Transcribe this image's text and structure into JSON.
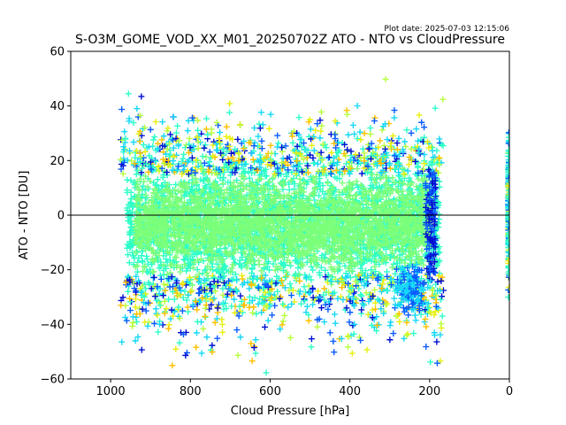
{
  "chart_data": {
    "type": "scatter",
    "title": "S-O3M_GOME_VOD_XX_M01_20250702Z ATO - NTO vs CloudPressure",
    "subtitle": "Plot date: 2025-07-03 12:15:06",
    "xlabel": "Cloud Pressure [hPa]",
    "ylabel": "ATO - NTO [DU]",
    "xlim": [
      1100,
      0
    ],
    "ylim": [
      -60,
      60
    ],
    "xticks": [
      1000,
      800,
      600,
      400,
      200,
      0
    ],
    "yticks": [
      -60,
      -40,
      -20,
      0,
      20,
      40,
      60
    ],
    "marker": "plus",
    "reference_line": {
      "y": 0,
      "color": "#000000"
    },
    "colors": {
      "core": "#7cff79",
      "mid": "#2effc8",
      "edge_cyan": "#17d8f8",
      "edge_blue": "#0a5cff",
      "edge_yellow": "#e8f010",
      "edge_orange": "#ffc000",
      "edge_lime": "#b8ff40",
      "dark_blue": "#0010d0"
    },
    "clusters": [
      {
        "x_range": [
          960,
          175
        ],
        "y_center": -3,
        "y_core_spread": 12,
        "y_outer_min": -58,
        "y_outer_max": 45
      },
      {
        "x_range": [
          5,
          0
        ],
        "y_center": 0,
        "y_core_spread": 15,
        "y_outer_min": -34,
        "y_outer_max": 34
      }
    ]
  }
}
